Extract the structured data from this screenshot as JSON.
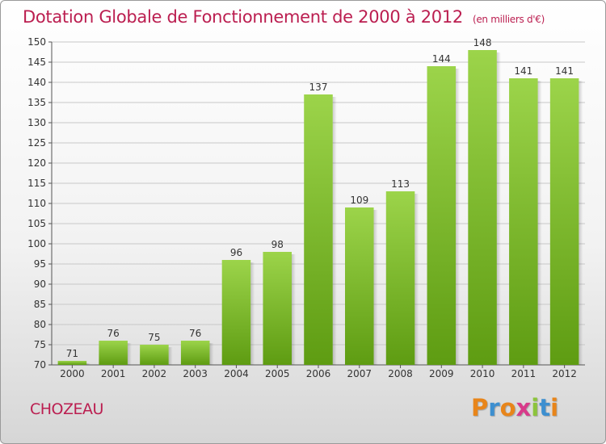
{
  "header": {
    "title": "Dotation Globale de Fonctionnement de 2000 à 2012",
    "unit": "(en milliers d'€)"
  },
  "footer": {
    "commune": "CHOZEAU",
    "logo_letters": [
      "P",
      "r",
      "o",
      "x",
      "i",
      "t",
      "i"
    ],
    "logo_colors": [
      "#e8851a",
      "#3d8fd0",
      "#e8851a",
      "#d83a8a",
      "#8cc43c",
      "#3d8fd0",
      "#e8851a"
    ]
  },
  "colors": {
    "bar_light": "#9cd44a",
    "bar_dark": "#5e9c12",
    "title": "#bb1e50",
    "grid": "#c8c8c8"
  },
  "chart_data": {
    "type": "bar",
    "title": "Dotation Globale de Fonctionnement de 2000 à 2012",
    "subtitle": "(en milliers d'€)",
    "categories": [
      "2000",
      "2001",
      "2002",
      "2003",
      "2004",
      "2005",
      "2006",
      "2007",
      "2008",
      "2009",
      "2010",
      "2011",
      "2012"
    ],
    "values": [
      71,
      76,
      75,
      76,
      96,
      98,
      137,
      109,
      113,
      144,
      148,
      141,
      141
    ],
    "data_labels": [
      "71",
      "76",
      "75",
      "76",
      "96",
      "98",
      "137",
      "109",
      "113",
      "144",
      "148",
      "141",
      "141"
    ],
    "ylim": [
      70,
      150
    ],
    "yticks": [
      70,
      75,
      80,
      85,
      90,
      95,
      100,
      105,
      110,
      115,
      120,
      125,
      130,
      135,
      140,
      145,
      150
    ],
    "ytick_labels": [
      "70",
      "75",
      "80",
      "85",
      "90",
      "95",
      "100",
      "105",
      "110",
      "115",
      "120",
      "125",
      "130",
      "135",
      "140",
      "145",
      "150"
    ],
    "grid": true,
    "legend": "none"
  }
}
